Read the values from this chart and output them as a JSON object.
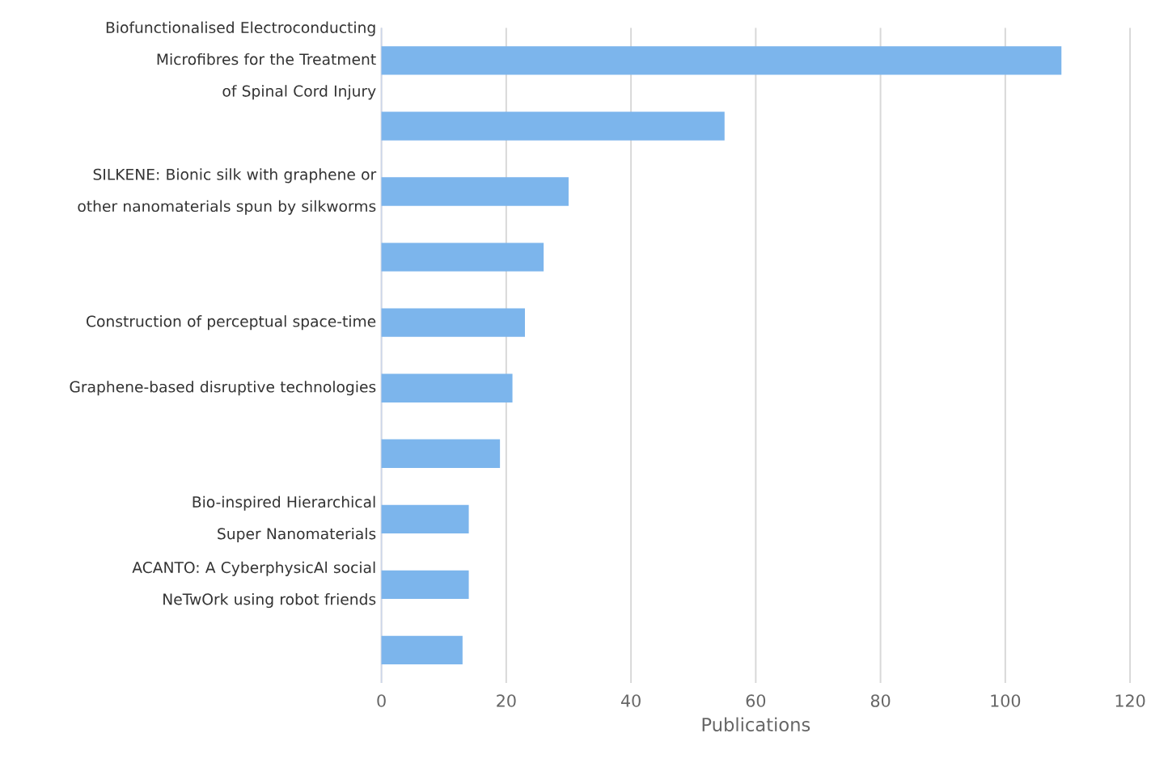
{
  "chart_data": {
    "type": "bar",
    "orientation": "horizontal",
    "categories": [
      "Biofunctionalised Electroconducting Microfibres for the Treatment of Spinal Cord Injury",
      null,
      "SILKENE: Bionic silk with graphene or other nanomaterials spun by silkworms",
      null,
      "Construction of perceptual space-time",
      "Graphene-based disruptive technologies",
      null,
      "Bio-inspired Hierarchical Super Nanomaterials",
      "ACANTO: A CyberphysicAl social NeTwOrk using robot friends",
      null
    ],
    "values": [
      109,
      55,
      30,
      26,
      23,
      21,
      19,
      14,
      14,
      13
    ],
    "color": "#7cb5ec",
    "xlim": [
      0,
      120
    ],
    "xticks": [
      0,
      20,
      40,
      60,
      80,
      100,
      120
    ],
    "xlabel": "Publications",
    "grid": "x"
  }
}
